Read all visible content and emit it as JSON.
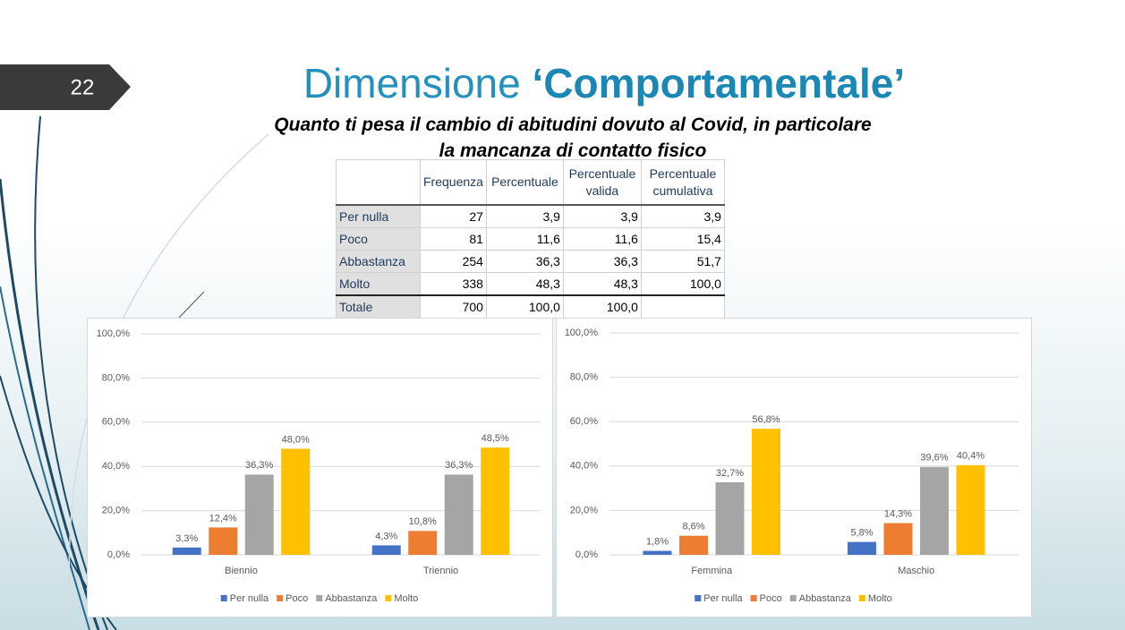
{
  "slide_number": "22",
  "title": {
    "light": "Dimensione",
    "bold": "‘Comportamentale’"
  },
  "subtitle": [
    "Quanto ti pesa il cambio di abitudini dovuto al Covid, in particolare",
    "la mancanza di contatto fisico"
  ],
  "table": {
    "headers": [
      "Frequenza",
      "Percentuale",
      "Percentuale valida",
      "Percentuale cumulativa"
    ],
    "rows": [
      {
        "label": "Per nulla",
        "cells": [
          "27",
          "3,9",
          "3,9",
          "3,9"
        ]
      },
      {
        "label": "Poco",
        "cells": [
          "81",
          "11,6",
          "11,6",
          "15,4"
        ]
      },
      {
        "label": "Abbastanza",
        "cells": [
          "254",
          "36,3",
          "36,3",
          "51,7"
        ]
      },
      {
        "label": "Molto",
        "cells": [
          "338",
          "48,3",
          "48,3",
          "100,0"
        ]
      },
      {
        "label": "Totale",
        "cells": [
          "700",
          "100,0",
          "100,0"
        ]
      }
    ]
  },
  "chart_data": [
    {
      "type": "bar",
      "categories": [
        "Biennio",
        "Triennio"
      ],
      "series": [
        {
          "name": "Per nulla",
          "color": "#4472c4",
          "values": [
            3.3,
            4.3
          ],
          "value_labels": [
            "3,3%",
            "4,3%"
          ]
        },
        {
          "name": "Poco",
          "color": "#ed7d31",
          "values": [
            12.4,
            10.8
          ],
          "value_labels": [
            "12,4%",
            "10,8%"
          ]
        },
        {
          "name": "Abbastanza",
          "color": "#a5a5a5",
          "values": [
            36.3,
            36.3
          ],
          "value_labels": [
            "36,3%",
            "36,3%"
          ]
        },
        {
          "name": "Molto",
          "color": "#ffc000",
          "values": [
            48.0,
            48.5
          ],
          "value_labels": [
            "48,0%",
            "48,5%"
          ]
        }
      ],
      "ylim": [
        0,
        100
      ],
      "yticks": [
        {
          "value": 0,
          "label": "0,0%"
        },
        {
          "value": 20,
          "label": "20,0%"
        },
        {
          "value": 40,
          "label": "40,0%"
        },
        {
          "value": 60,
          "label": "60,0%"
        },
        {
          "value": 80,
          "label": "80,0%"
        },
        {
          "value": 100,
          "label": "100,0%"
        }
      ],
      "grid": true,
      "legend": "bottom"
    },
    {
      "type": "bar",
      "categories": [
        "Femmina",
        "Maschio"
      ],
      "series": [
        {
          "name": "Per nulla",
          "color": "#4472c4",
          "values": [
            1.8,
            5.8
          ],
          "value_labels": [
            "1,8%",
            "5,8%"
          ]
        },
        {
          "name": "Poco",
          "color": "#ed7d31",
          "values": [
            8.6,
            14.3
          ],
          "value_labels": [
            "8,6%",
            "14,3%"
          ]
        },
        {
          "name": "Abbastanza",
          "color": "#a5a5a5",
          "values": [
            32.7,
            39.6
          ],
          "value_labels": [
            "32,7%",
            "39,6%"
          ]
        },
        {
          "name": "Molto",
          "color": "#ffc000",
          "values": [
            56.8,
            40.4
          ],
          "value_labels": [
            "56,8%",
            "40,4%"
          ]
        }
      ],
      "ylim": [
        0,
        100
      ],
      "yticks": [
        {
          "value": 0,
          "label": "0,0%"
        },
        {
          "value": 20,
          "label": "20,0%"
        },
        {
          "value": 40,
          "label": "40,0%"
        },
        {
          "value": 60,
          "label": "60,0%"
        },
        {
          "value": 80,
          "label": "80,0%"
        },
        {
          "value": 100,
          "label": "100,0%"
        }
      ],
      "grid": true,
      "legend": "bottom"
    }
  ]
}
